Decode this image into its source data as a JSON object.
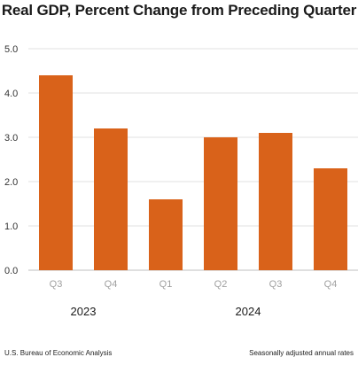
{
  "title": "Real GDP, Percent Change from Preceding Quarter",
  "footer": {
    "source": "U.S. Bureau of Economic Analysis",
    "note": "Seasonally adjusted annual rates"
  },
  "colors": {
    "bar": "#d9621a",
    "grid": "#e2e2e2",
    "axis": "#bfbfbf"
  },
  "chart_data": {
    "type": "bar",
    "categories": [
      "Q3",
      "Q4",
      "Q1",
      "Q2",
      "Q3",
      "Q4"
    ],
    "values": [
      4.4,
      3.2,
      1.6,
      3.0,
      3.1,
      2.3
    ],
    "groups": [
      {
        "label": "2023",
        "categories": [
          "Q3",
          "Q4"
        ]
      },
      {
        "label": "2024",
        "categories": [
          "Q1",
          "Q2",
          "Q3",
          "Q4"
        ]
      }
    ],
    "title": "Real GDP, Percent Change from Preceding Quarter",
    "xlabel": "",
    "ylabel": "",
    "ylim": [
      0,
      5
    ],
    "yticks": [
      "0.0",
      "1.0",
      "2.0",
      "3.0",
      "4.0",
      "5.0"
    ],
    "grid": true,
    "legend": "none"
  }
}
